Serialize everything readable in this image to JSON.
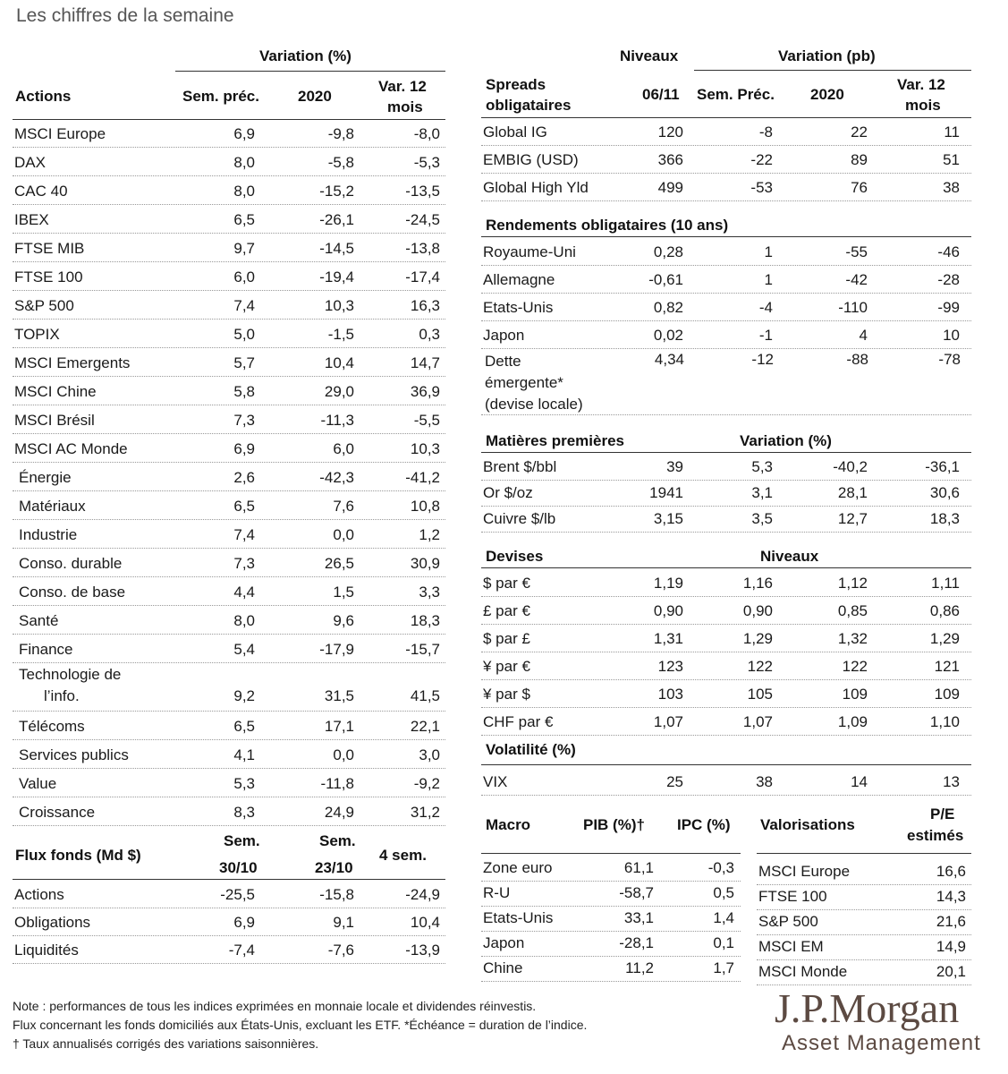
{
  "title": "Les chiffres de la semaine",
  "actions": {
    "group_header": "Variation (%)",
    "label_header": "Actions",
    "col_headers": [
      "Sem. préc.",
      "2020",
      "Var. 12",
      "mois"
    ],
    "rows": [
      [
        "MSCI Europe",
        "6,9",
        "-9,8",
        "-8,0"
      ],
      [
        "DAX",
        "8,0",
        "-5,8",
        "-5,3"
      ],
      [
        "CAC 40",
        "8,0",
        "-15,2",
        "-13,5"
      ],
      [
        "IBEX",
        "6,5",
        "-26,1",
        "-24,5"
      ],
      [
        "FTSE MIB",
        "9,7",
        "-14,5",
        "-13,8"
      ],
      [
        "FTSE 100",
        "6,0",
        "-19,4",
        "-17,4"
      ],
      [
        "S&P 500",
        "7,4",
        "10,3",
        "16,3"
      ],
      [
        "TOPIX",
        "5,0",
        "-1,5",
        "0,3"
      ],
      [
        "MSCI Emergents",
        "5,7",
        "10,4",
        "14,7"
      ],
      [
        "MSCI Chine",
        "5,8",
        "29,0",
        "36,9"
      ],
      [
        "MSCI Brésil",
        "7,3",
        "-11,3",
        "-5,5"
      ],
      [
        "MSCI AC Monde",
        "6,9",
        "6,0",
        "10,3"
      ],
      [
        "Énergie",
        "2,6",
        "-42,3",
        "-41,2"
      ],
      [
        "Matériaux",
        "6,5",
        "7,6",
        "10,8"
      ],
      [
        "Industrie",
        "7,4",
        "0,0",
        "1,2"
      ],
      [
        "Conso. durable",
        "7,3",
        "26,5",
        "30,9"
      ],
      [
        "Conso. de base",
        "4,4",
        "1,5",
        "3,3"
      ],
      [
        "Santé",
        "8,0",
        "9,6",
        "18,3"
      ],
      [
        "Finance",
        "5,4",
        "-17,9",
        "-15,7"
      ]
    ],
    "tech_label_1": "Technologie de",
    "tech_label_2": "l’info.",
    "tech_values": [
      "9,2",
      "31,5",
      "41,5"
    ],
    "rows2": [
      [
        "Télécoms",
        "6,5",
        "17,1",
        "22,1"
      ],
      [
        "Services publics",
        "4,1",
        "0,0",
        "3,0"
      ],
      [
        "Value",
        "5,3",
        "-11,8",
        "-9,2"
      ],
      [
        "Croissance",
        "8,3",
        "24,9",
        "31,2"
      ]
    ]
  },
  "flux": {
    "label_header": "Flux fonds (Md $)",
    "col_headers": [
      "Sem.",
      "30/10",
      "Sem.",
      "23/10",
      "4 sem."
    ],
    "rows": [
      [
        "Actions",
        "-25,5",
        "-15,8",
        "-24,9"
      ],
      [
        "Obligations",
        "6,9",
        "9,1",
        "10,4"
      ],
      [
        "Liquidités",
        "-7,4",
        "-7,6",
        "-13,9"
      ]
    ]
  },
  "spreads": {
    "niveaux_header": "Niveaux",
    "variation_header": "Variation (pb)",
    "label_header_1": "Spreads",
    "label_header_2": "obligataires",
    "col_headers": [
      "06/11",
      "Sem. Préc.",
      "2020",
      "Var. 12",
      "mois"
    ],
    "rows": [
      [
        "Global IG",
        "120",
        "-8",
        "22",
        "11"
      ],
      [
        "EMBIG (USD)",
        "366",
        "-22",
        "89",
        "51"
      ],
      [
        "Global High Yld",
        "499",
        "-53",
        "76",
        "38"
      ]
    ]
  },
  "rendements": {
    "header": "Rendements obligataires (10 ans)",
    "rows": [
      [
        "Royaume-Uni",
        "0,28",
        "1",
        "-55",
        "-46"
      ],
      [
        "Allemagne",
        "-0,61",
        "1",
        "-42",
        "-28"
      ],
      [
        "Etats-Unis",
        "0,82",
        "-4",
        "-110",
        "-99"
      ],
      [
        "Japon",
        "0,02",
        "-1",
        "4",
        "10"
      ]
    ],
    "dette_1": "Dette",
    "dette_2": "émergente*",
    "dette_3": "(devise locale)",
    "dette_values": [
      "4,34",
      "-12",
      "-88",
      "-78"
    ]
  },
  "matieres": {
    "header": "Matières premières",
    "sub_header": "Variation (%)",
    "rows": [
      [
        "Brent $/bbl",
        "39",
        "5,3",
        "-40,2",
        "-36,1"
      ],
      [
        "Or $/oz",
        "1941",
        "3,1",
        "28,1",
        "30,6"
      ],
      [
        "Cuivre $/lb",
        "3,15",
        "3,5",
        "12,7",
        "18,3"
      ]
    ]
  },
  "devises": {
    "header": "Devises",
    "sub_header": "Niveaux",
    "rows": [
      [
        "$ par €",
        "1,19",
        "1,16",
        "1,12",
        "1,11"
      ],
      [
        "£ par €",
        "0,90",
        "0,90",
        "0,85",
        "0,86"
      ],
      [
        "$ par £",
        "1,31",
        "1,29",
        "1,32",
        "1,29"
      ],
      [
        "¥ par €",
        "123",
        "122",
        "122",
        "121"
      ],
      [
        "¥ par $",
        "103",
        "105",
        "109",
        "109"
      ],
      [
        "CHF par €",
        "1,07",
        "1,07",
        "1,09",
        "1,10"
      ]
    ]
  },
  "volatilite": {
    "header": "Volatilité (%)",
    "rows": [
      [
        "VIX",
        "25",
        "38",
        "14",
        "13"
      ]
    ]
  },
  "macro": {
    "label_header": "Macro",
    "col_headers": [
      "PIB (%)†",
      "IPC (%)"
    ],
    "rows": [
      [
        "Zone euro",
        "61,1",
        "-0,3"
      ],
      [
        "R-U",
        "-58,7",
        "0,5"
      ],
      [
        "Etats-Unis",
        "33,1",
        "1,4"
      ],
      [
        "Japon",
        "-28,1",
        "0,1"
      ],
      [
        "Chine",
        "11,2",
        "1,7"
      ]
    ]
  },
  "valorisations": {
    "label_header": "Valorisations",
    "col_header_1": "P/E",
    "col_header_2": "estimés",
    "rows": [
      [
        "MSCI Europe",
        "16,6"
      ],
      [
        "FTSE 100",
        "14,3"
      ],
      [
        "S&P 500",
        "21,6"
      ],
      [
        "MSCI EM",
        "14,9"
      ],
      [
        "MSCI Monde",
        "20,1"
      ]
    ]
  },
  "notes": [
    "Note : performances de tous les indices exprimées en monnaie locale et dividendes réinvestis.",
    "Flux concernant les fonds domiciliés aux États-Unis, excluant les ETF. *Échéance = duration de l’indice.",
    "† Taux annualisés corrigés des variations saisonnières."
  ],
  "logo": {
    "line1": "J.P.Morgan",
    "line2": "Asset Management"
  }
}
